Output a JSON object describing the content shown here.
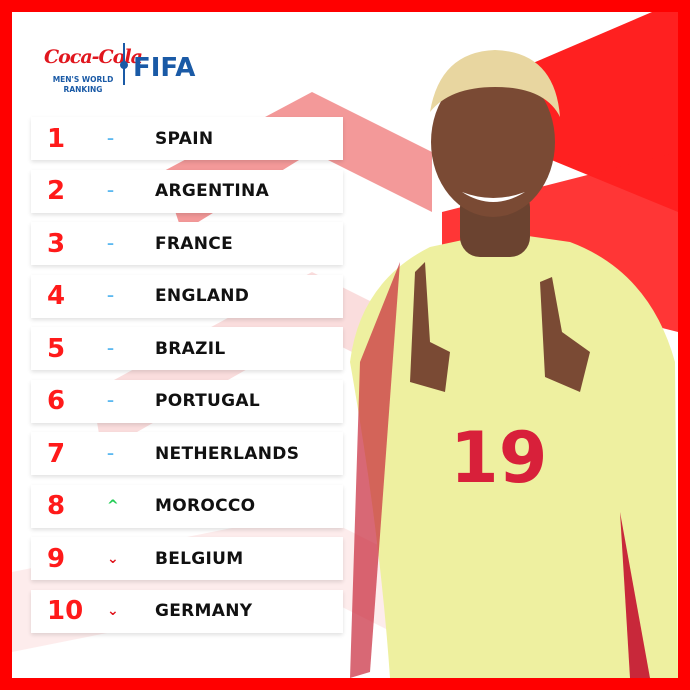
{
  "brand": {
    "sponsor": "Coca-Cola",
    "subtitle_line1": "MEN'S WORLD",
    "subtitle_line2": "RANKING",
    "org": "FIFA"
  },
  "colors": {
    "frame": "#ff0000",
    "rank": "#ff1a1a",
    "same": "#5bb8f0",
    "up": "#22cc55",
    "down": "#e0161e",
    "fifa_blue": "#1a5aa6"
  },
  "ranking": [
    {
      "rank": "1",
      "trend": "same",
      "symbol": "–",
      "country": "SPAIN"
    },
    {
      "rank": "2",
      "trend": "same",
      "symbol": "–",
      "country": "ARGENTINA"
    },
    {
      "rank": "3",
      "trend": "same",
      "symbol": "–",
      "country": "FRANCE"
    },
    {
      "rank": "4",
      "trend": "same",
      "symbol": "–",
      "country": "ENGLAND"
    },
    {
      "rank": "5",
      "trend": "same",
      "symbol": "–",
      "country": "BRAZIL"
    },
    {
      "rank": "6",
      "trend": "same",
      "symbol": "–",
      "country": "PORTUGAL"
    },
    {
      "rank": "7",
      "trend": "same",
      "symbol": "–",
      "country": "NETHERLANDS"
    },
    {
      "rank": "8",
      "trend": "up",
      "symbol": "^",
      "country": "MOROCCO"
    },
    {
      "rank": "9",
      "trend": "down",
      "symbol": "⌄",
      "country": "BELGIUM"
    },
    {
      "rank": "10",
      "trend": "down",
      "symbol": "⌄",
      "country": "GERMANY"
    }
  ],
  "player": {
    "shirt_number": "19"
  }
}
